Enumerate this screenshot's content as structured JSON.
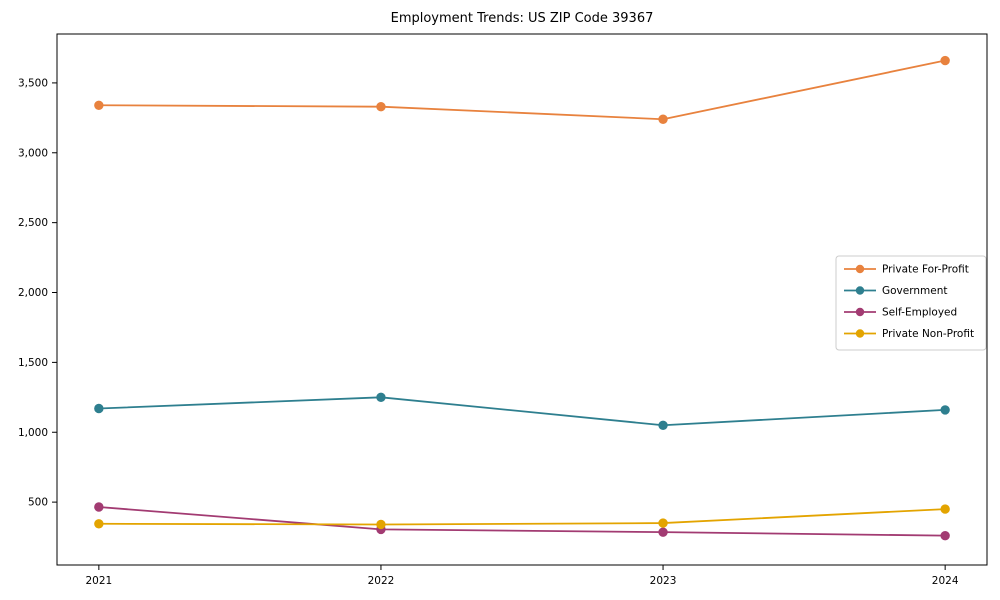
{
  "chart_data": {
    "type": "line",
    "title": "Employment Trends: US ZIP Code 39367",
    "x": [
      2021,
      2022,
      2023,
      2024
    ],
    "x_tick_labels": [
      "2021",
      "2022",
      "2023",
      "2024"
    ],
    "y_ticks": [
      500,
      1000,
      1500,
      2000,
      2500,
      3000,
      3500
    ],
    "y_tick_labels": [
      "500",
      "1,000",
      "1,500",
      "2,000",
      "2,500",
      "3,000",
      "3,500"
    ],
    "ylim": [
      50,
      3850
    ],
    "grid": false,
    "legend_position": "center right",
    "marker": "circle",
    "series": [
      {
        "name": "Private For-Profit",
        "color": "#e8823e",
        "values": [
          3340,
          3330,
          3240,
          3660
        ]
      },
      {
        "name": "Government",
        "color": "#2e7f8f",
        "values": [
          1170,
          1250,
          1050,
          1160
        ]
      },
      {
        "name": "Self-Employed",
        "color": "#a23b72",
        "values": [
          465,
          305,
          285,
          260
        ]
      },
      {
        "name": "Private Non-Profit",
        "color": "#e3a400",
        "values": [
          345,
          340,
          350,
          450
        ]
      }
    ]
  }
}
